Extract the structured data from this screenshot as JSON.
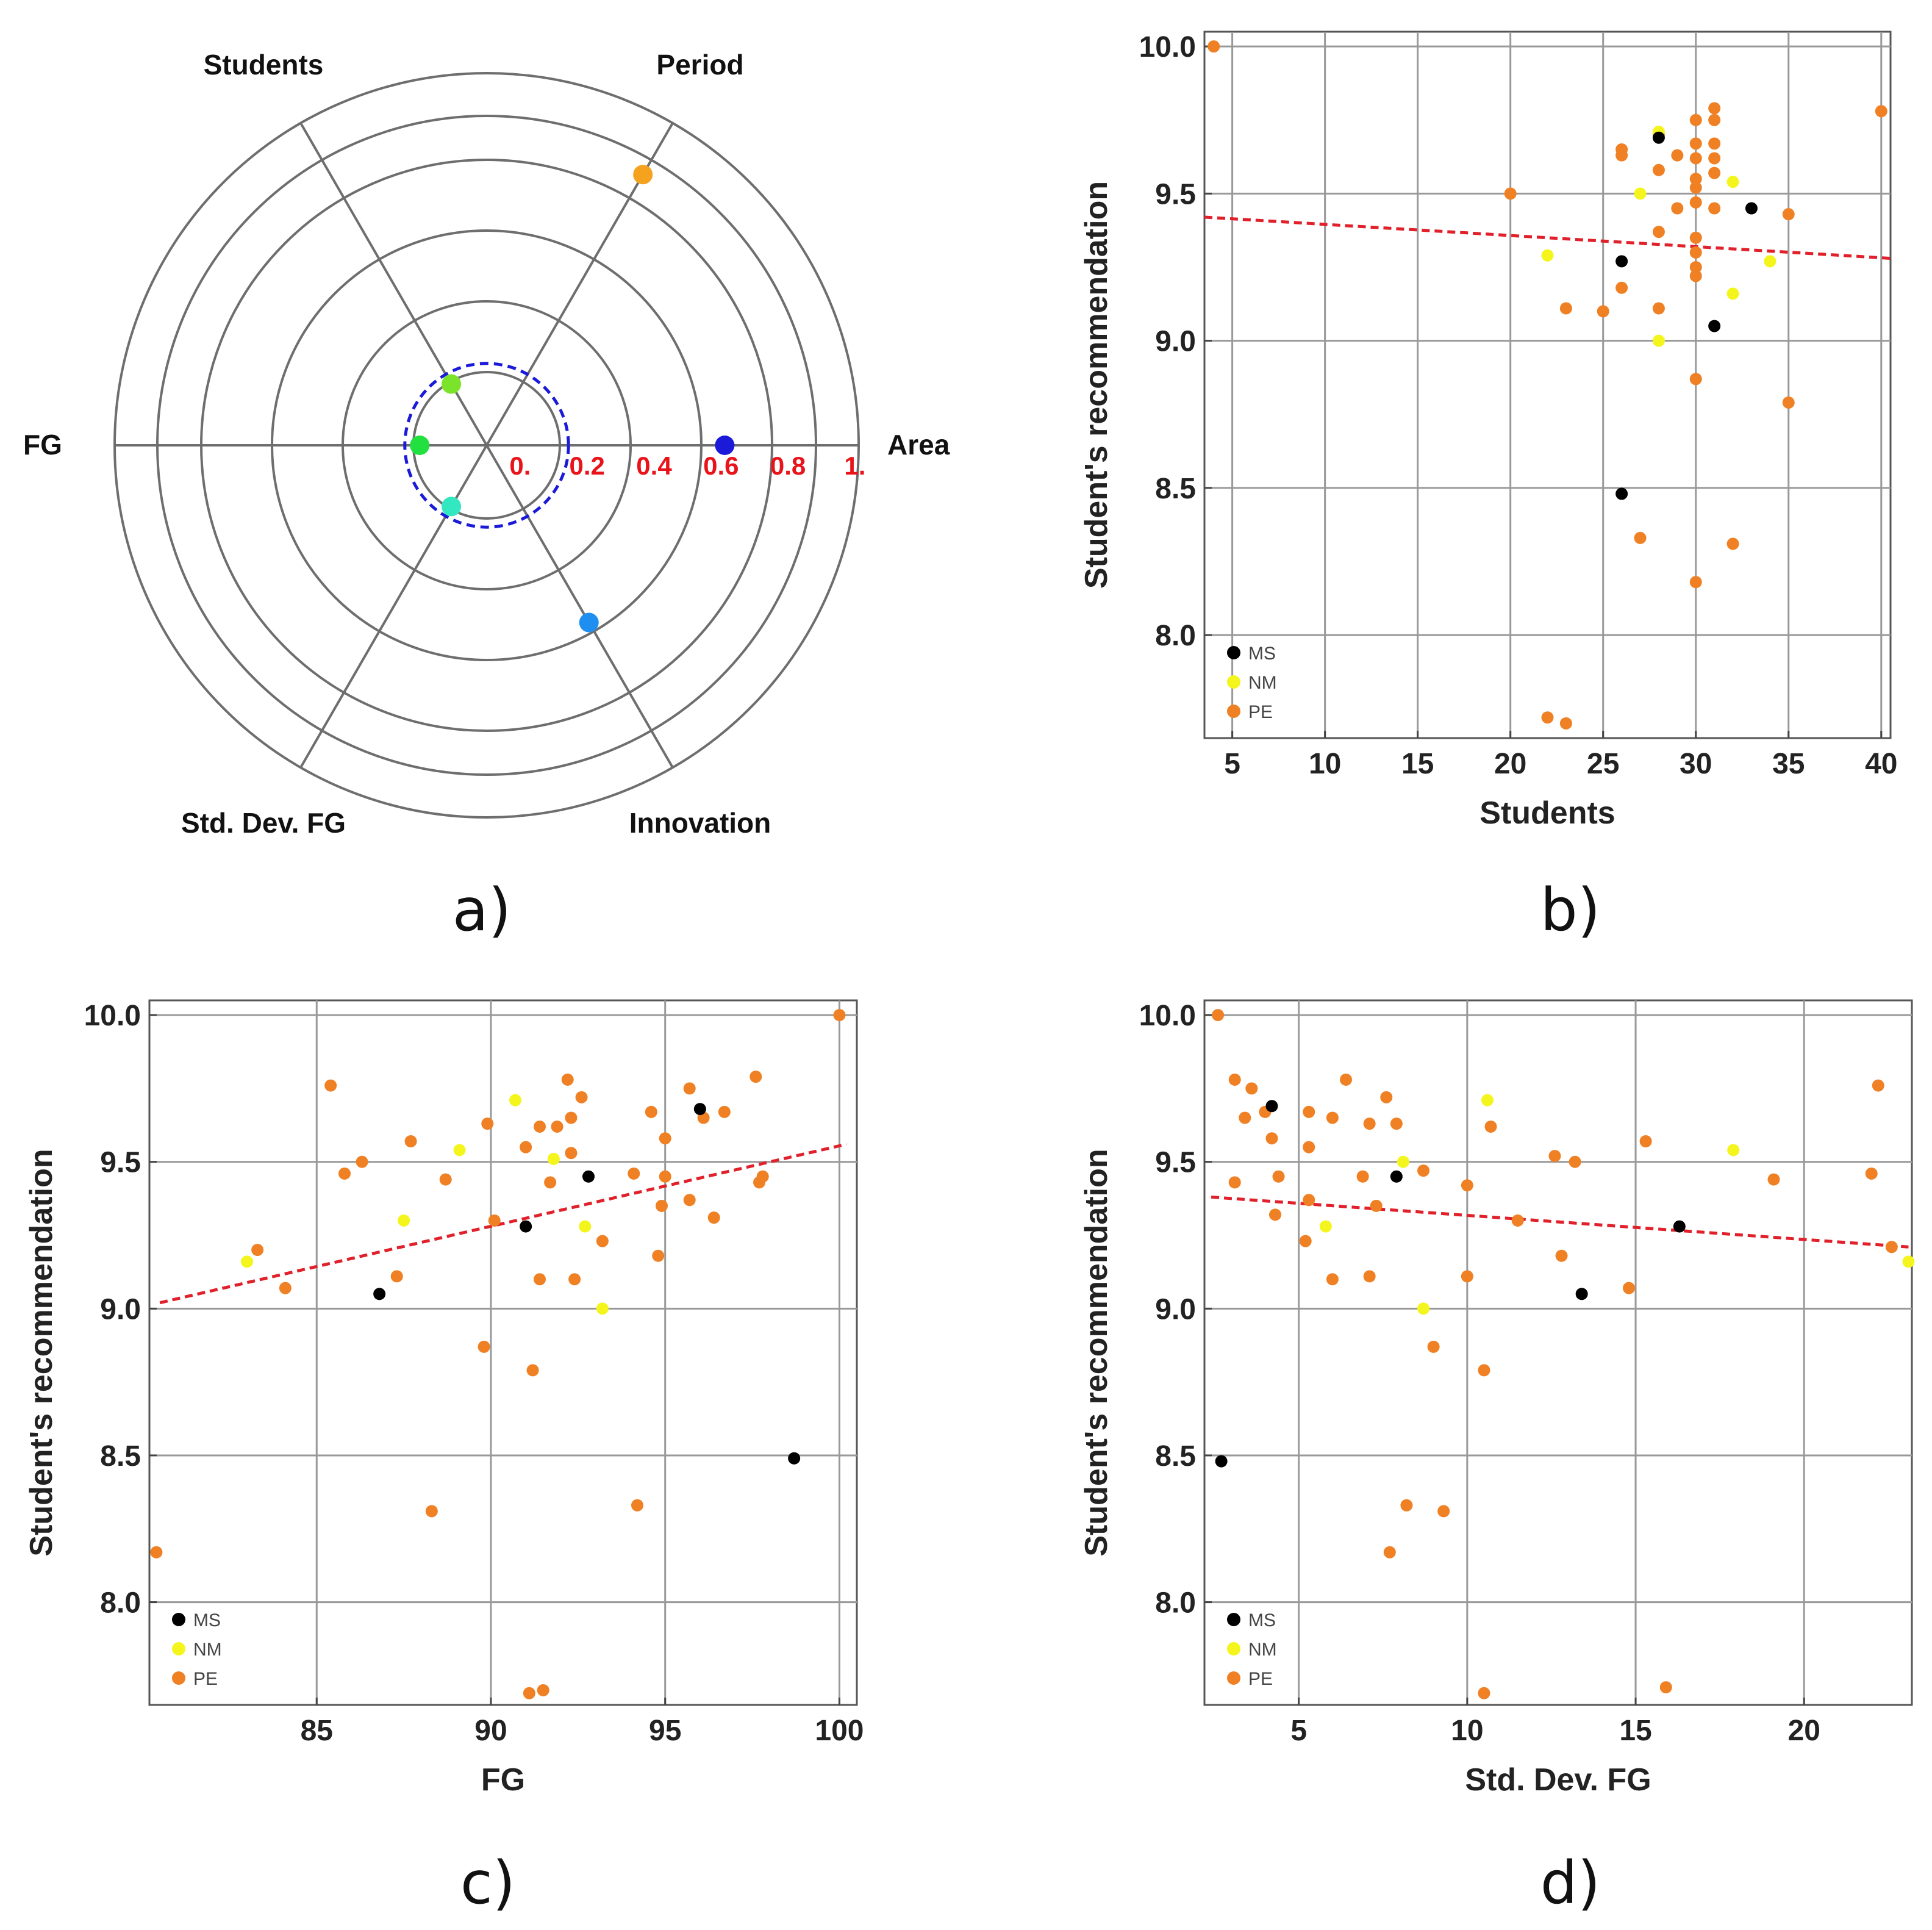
{
  "figure": {
    "panel_labels": [
      "a)",
      "b)",
      "c)",
      "d)"
    ]
  },
  "colors": {
    "MS": "#000000",
    "NM": "#f5f51e",
    "PE": "#f08024",
    "trend": "#e0202a",
    "grid": "#999999",
    "radial_tick": "#e8141a",
    "threshold_circle": "#1a1ad8"
  },
  "chart_data": [
    {
      "type": "radar",
      "panel": "a)",
      "axes": [
        "Area",
        "Period",
        "Students",
        "FG",
        "Std. Dev. FG",
        "Innovation"
      ],
      "radial_ticks": [
        "0.",
        "0.2",
        "0.4",
        "0.6",
        "0.8",
        "1."
      ],
      "rlim": [
        0,
        1
      ],
      "threshold_circle": 0.22,
      "points": [
        {
          "axis": "Area",
          "value": 0.64,
          "color": "#1a1ad8"
        },
        {
          "axis": "Period",
          "value": 0.84,
          "color": "#f5a21e"
        },
        {
          "axis": "Students",
          "value": 0.19,
          "color": "#7be42a"
        },
        {
          "axis": "FG",
          "value": 0.18,
          "color": "#22e040"
        },
        {
          "axis": "Std. Dev. FG",
          "value": 0.19,
          "color": "#33e8c0"
        },
        {
          "axis": "Innovation",
          "value": 0.55,
          "color": "#1e8ff0"
        }
      ]
    },
    {
      "type": "scatter",
      "panel": "b)",
      "xlabel": "Students",
      "ylabel": "Student's recommendation",
      "xlim": [
        3.5,
        40.5
      ],
      "ylim": [
        7.65,
        10.05
      ],
      "xticks": [
        5,
        10,
        15,
        20,
        25,
        30,
        35,
        40
      ],
      "yticks": [
        8.0,
        8.5,
        9.0,
        9.5,
        10.0
      ],
      "xtick_labels": [
        "5",
        "10",
        "15",
        "20",
        "25",
        "30",
        "35",
        "40"
      ],
      "ytick_labels": [
        "8.0",
        "8.5",
        "9.0",
        "9.5",
        "10.0"
      ],
      "legend": [
        "MS",
        "NM",
        "PE"
      ],
      "trend": {
        "x": [
          3.5,
          40.5
        ],
        "y": [
          9.42,
          9.28
        ]
      },
      "series": [
        {
          "name": "MS",
          "points": [
            [
              26,
              9.27
            ],
            [
              26,
              8.48
            ],
            [
              28,
              9.69
            ],
            [
              31,
              9.05
            ],
            [
              33,
              9.45
            ]
          ]
        },
        {
          "name": "NM",
          "points": [
            [
              22,
              9.29
            ],
            [
              27,
              9.5
            ],
            [
              28,
              9.71
            ],
            [
              28,
              9.0
            ],
            [
              32,
              9.54
            ],
            [
              32,
              9.16
            ],
            [
              34,
              9.27
            ]
          ]
        },
        {
          "name": "PE",
          "points": [
            [
              4,
              10.0
            ],
            [
              20,
              9.5
            ],
            [
              22,
              7.72
            ],
            [
              23,
              7.7
            ],
            [
              23,
              9.11
            ],
            [
              25,
              9.1
            ],
            [
              26,
              9.63
            ],
            [
              26,
              9.65
            ],
            [
              26,
              9.18
            ],
            [
              27,
              8.33
            ],
            [
              28,
              9.58
            ],
            [
              28,
              9.37
            ],
            [
              28,
              9.11
            ],
            [
              28,
              9.7
            ],
            [
              29,
              9.63
            ],
            [
              29,
              9.45
            ],
            [
              30,
              9.75
            ],
            [
              30,
              9.67
            ],
            [
              30,
              9.62
            ],
            [
              30,
              9.55
            ],
            [
              30,
              9.52
            ],
            [
              30,
              9.47
            ],
            [
              30,
              9.35
            ],
            [
              30,
              9.3
            ],
            [
              30,
              9.25
            ],
            [
              30,
              9.22
            ],
            [
              30,
              8.87
            ],
            [
              30,
              8.18
            ],
            [
              31,
              9.79
            ],
            [
              31,
              9.75
            ],
            [
              31,
              9.67
            ],
            [
              31,
              9.62
            ],
            [
              31,
              9.57
            ],
            [
              31,
              9.45
            ],
            [
              32,
              8.31
            ],
            [
              35,
              9.43
            ],
            [
              35,
              8.79
            ],
            [
              40,
              9.78
            ]
          ]
        }
      ]
    },
    {
      "type": "scatter",
      "panel": "c)",
      "xlabel": "FG",
      "ylabel": "Student's recommendation",
      "xlim": [
        80.2,
        100.5
      ],
      "ylim": [
        7.65,
        10.05
      ],
      "xticks": [
        85,
        90,
        95,
        100
      ],
      "yticks": [
        8.0,
        8.5,
        9.0,
        9.5,
        10.0
      ],
      "xtick_labels": [
        "85",
        "90",
        "95",
        "100"
      ],
      "ytick_labels": [
        "8.0",
        "8.5",
        "9.0",
        "9.5",
        "10.0"
      ],
      "legend": [
        "MS",
        "NM",
        "PE"
      ],
      "trend": {
        "x": [
          80.5,
          100.2
        ],
        "y": [
          9.02,
          9.56
        ]
      },
      "series": [
        {
          "name": "MS",
          "points": [
            [
              86.8,
              9.05
            ],
            [
              91.0,
              9.28
            ],
            [
              92.8,
              9.45
            ],
            [
              96.0,
              9.68
            ],
            [
              98.7,
              8.49
            ]
          ]
        },
        {
          "name": "NM",
          "points": [
            [
              83.0,
              9.16
            ],
            [
              87.5,
              9.3
            ],
            [
              89.1,
              9.54
            ],
            [
              90.7,
              9.71
            ],
            [
              91.8,
              9.51
            ],
            [
              92.7,
              9.28
            ],
            [
              93.2,
              9.0
            ]
          ]
        },
        {
          "name": "PE",
          "points": [
            [
              80.4,
              8.17
            ],
            [
              83.3,
              9.2
            ],
            [
              84.1,
              9.07
            ],
            [
              85.4,
              9.76
            ],
            [
              85.8,
              9.46
            ],
            [
              86.3,
              9.5
            ],
            [
              87.3,
              9.11
            ],
            [
              87.7,
              9.57
            ],
            [
              88.3,
              8.31
            ],
            [
              88.7,
              9.44
            ],
            [
              89.8,
              8.87
            ],
            [
              89.9,
              9.63
            ],
            [
              90.1,
              9.3
            ],
            [
              91.0,
              9.55
            ],
            [
              91.1,
              7.69
            ],
            [
              91.2,
              8.79
            ],
            [
              91.4,
              9.1
            ],
            [
              91.5,
              7.7
            ],
            [
              91.4,
              9.62
            ],
            [
              91.7,
              9.43
            ],
            [
              91.9,
              9.62
            ],
            [
              92.2,
              9.78
            ],
            [
              92.3,
              9.53
            ],
            [
              92.3,
              9.65
            ],
            [
              92.4,
              9.1
            ],
            [
              92.6,
              9.72
            ],
            [
              93.2,
              9.23
            ],
            [
              94.1,
              9.46
            ],
            [
              94.2,
              8.33
            ],
            [
              94.6,
              9.67
            ],
            [
              94.8,
              9.18
            ],
            [
              94.9,
              9.35
            ],
            [
              95.0,
              9.45
            ],
            [
              95.0,
              9.58
            ],
            [
              95.7,
              9.75
            ],
            [
              95.7,
              9.37
            ],
            [
              96.1,
              9.65
            ],
            [
              96.4,
              9.31
            ],
            [
              96.7,
              9.67
            ],
            [
              97.6,
              9.79
            ],
            [
              97.7,
              9.43
            ],
            [
              97.8,
              9.45
            ],
            [
              100.0,
              10.0
            ]
          ]
        }
      ]
    },
    {
      "type": "scatter",
      "panel": "d)",
      "xlabel": "Std. Dev. FG",
      "ylabel": "Student's recommendation",
      "xlim": [
        2.2,
        23.2
      ],
      "ylim": [
        7.65,
        10.05
      ],
      "xticks": [
        5,
        10,
        15,
        20
      ],
      "yticks": [
        8.0,
        8.5,
        9.0,
        9.5,
        10.0
      ],
      "xtick_labels": [
        "5",
        "10",
        "15",
        "20"
      ],
      "ytick_labels": [
        "8.0",
        "8.5",
        "9.0",
        "9.5",
        "10.0"
      ],
      "legend": [
        "MS",
        "NM",
        "PE"
      ],
      "trend": {
        "x": [
          2.4,
          23.1
        ],
        "y": [
          9.38,
          9.21
        ]
      },
      "series": [
        {
          "name": "MS",
          "points": [
            [
              2.7,
              8.48
            ],
            [
              4.2,
              9.69
            ],
            [
              7.9,
              9.45
            ],
            [
              13.4,
              9.05
            ],
            [
              16.3,
              9.28
            ]
          ]
        },
        {
          "name": "NM",
          "points": [
            [
              5.8,
              9.28
            ],
            [
              8.1,
              9.5
            ],
            [
              8.7,
              9.0
            ],
            [
              10.6,
              9.71
            ],
            [
              17.9,
              9.54
            ],
            [
              23.1,
              9.16
            ]
          ]
        },
        {
          "name": "PE",
          "points": [
            [
              2.6,
              10.0
            ],
            [
              3.1,
              9.78
            ],
            [
              3.1,
              9.43
            ],
            [
              3.4,
              9.65
            ],
            [
              3.6,
              9.75
            ],
            [
              4.0,
              9.67
            ],
            [
              4.2,
              9.58
            ],
            [
              4.3,
              9.32
            ],
            [
              4.4,
              9.45
            ],
            [
              5.2,
              9.23
            ],
            [
              5.3,
              9.67
            ],
            [
              5.3,
              9.37
            ],
            [
              5.3,
              9.55
            ],
            [
              6.0,
              9.65
            ],
            [
              6.0,
              9.1
            ],
            [
              6.4,
              9.78
            ],
            [
              6.9,
              9.45
            ],
            [
              7.1,
              9.63
            ],
            [
              7.1,
              9.11
            ],
            [
              7.3,
              9.35
            ],
            [
              7.6,
              9.72
            ],
            [
              7.7,
              8.17
            ],
            [
              7.9,
              9.63
            ],
            [
              8.2,
              8.33
            ],
            [
              8.7,
              9.47
            ],
            [
              9.0,
              8.87
            ],
            [
              9.3,
              8.31
            ],
            [
              10.0,
              9.42
            ],
            [
              10.0,
              9.11
            ],
            [
              10.5,
              8.79
            ],
            [
              10.5,
              7.69
            ],
            [
              10.7,
              9.62
            ],
            [
              11.5,
              9.3
            ],
            [
              12.6,
              9.52
            ],
            [
              12.8,
              9.18
            ],
            [
              13.2,
              9.5
            ],
            [
              14.8,
              9.07
            ],
            [
              15.3,
              9.57
            ],
            [
              15.9,
              7.71
            ],
            [
              19.1,
              9.44
            ],
            [
              22.0,
              9.46
            ],
            [
              22.2,
              9.76
            ],
            [
              22.6,
              9.21
            ]
          ]
        }
      ]
    }
  ]
}
